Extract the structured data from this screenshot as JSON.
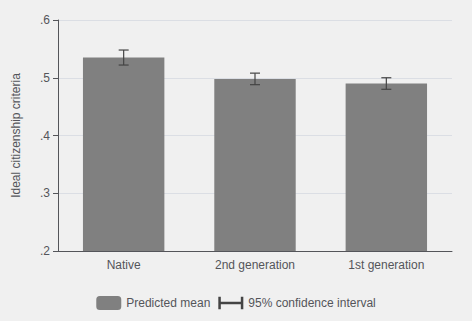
{
  "chart_data": {
    "type": "bar",
    "categories": [
      "Native",
      "2nd generation",
      "1st generation"
    ],
    "series": [
      {
        "name": "Predicted mean",
        "color": "#808080",
        "values": [
          0.535,
          0.498,
          0.49
        ],
        "errors": [
          0.013,
          0.01,
          0.01
        ],
        "error_name": "95% confidence interval"
      }
    ],
    "ylabel": "Ideal citizenship criteria",
    "ylim": [
      0.2,
      0.6
    ],
    "yticks": [
      {
        "value": 0.2,
        "label": ".2"
      },
      {
        "value": 0.3,
        "label": ".3"
      },
      {
        "value": 0.4,
        "label": ".4"
      },
      {
        "value": 0.5,
        "label": ".5"
      },
      {
        "value": 0.6,
        "label": ".6"
      }
    ],
    "grid": true,
    "legend": "bottom"
  }
}
